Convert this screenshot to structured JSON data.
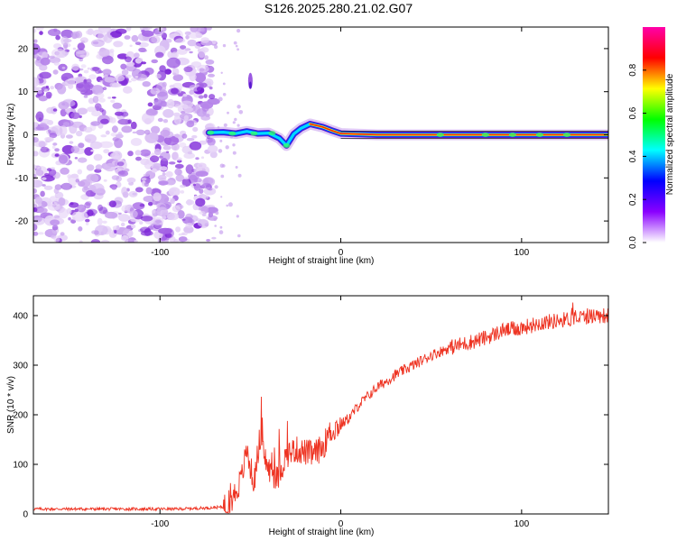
{
  "title": "S126.2025.280.21.02.G07",
  "chart_data": [
    {
      "type": "heatmap",
      "title": "S126.2025.280.21.02.G07",
      "xlabel": "Height of straight line (km)",
      "ylabel": "Frequency (Hz)",
      "xlim": [
        -170,
        148
      ],
      "ylim": [
        -25,
        25
      ],
      "xticks": [
        -100,
        0,
        100
      ],
      "yticks": [
        20,
        10,
        0,
        -10,
        -20
      ],
      "colorbar": {
        "label": "Normalized spectral amplitude",
        "range": [
          0,
          1
        ],
        "ticks": [
          0.0,
          0.2,
          0.4,
          0.6,
          0.8
        ],
        "colors": [
          "#ffffff",
          "#8a00ff",
          "#0000ff",
          "#00ffff",
          "#00ff00",
          "#ffff00",
          "#ff0000",
          "#ff00aa"
        ]
      },
      "signal_track": [
        {
          "x": -73,
          "y": 0.5
        },
        {
          "x": -65,
          "y": 0.6
        },
        {
          "x": -58,
          "y": 0.3
        },
        {
          "x": -52,
          "y": 0.8
        },
        {
          "x": -46,
          "y": 0.3
        },
        {
          "x": -40,
          "y": 0.4
        },
        {
          "x": -34,
          "y": -0.8
        },
        {
          "x": -30,
          "y": -2.5
        },
        {
          "x": -26,
          "y": 0.2
        },
        {
          "x": -22,
          "y": 1.5
        },
        {
          "x": -17,
          "y": 2.5
        },
        {
          "x": -10,
          "y": 1.8
        },
        {
          "x": -5,
          "y": 1.0
        },
        {
          "x": 0,
          "y": 0.3
        },
        {
          "x": 20,
          "y": 0.0
        },
        {
          "x": 60,
          "y": 0.0
        },
        {
          "x": 100,
          "y": 0.0
        },
        {
          "x": 148,
          "y": 0.0
        }
      ],
      "noise_region_x": [
        -170,
        -70
      ],
      "annotations": [
        "feature near x=-50, y=10..15"
      ]
    },
    {
      "type": "line",
      "xlabel": "Height of straight line (km)",
      "ylabel": "SNR (10 * v/v)",
      "xlim": [
        -170,
        148
      ],
      "ylim": [
        0,
        440
      ],
      "xticks": [
        -100,
        0,
        100
      ],
      "yticks": [
        0,
        100,
        200,
        300,
        400
      ],
      "series": [
        {
          "name": "SNR",
          "color": "#ee3322",
          "x": [
            -170,
            -150,
            -130,
            -110,
            -90,
            -75,
            -65,
            -60,
            -55,
            -52,
            -48,
            -45,
            -40,
            -35,
            -30,
            -25,
            -20,
            -15,
            -10,
            -5,
            0,
            5,
            10,
            20,
            30,
            40,
            50,
            60,
            70,
            80,
            90,
            100,
            110,
            120,
            130,
            140,
            148
          ],
          "y": [
            10,
            10,
            10,
            10,
            10,
            12,
            14,
            30,
            70,
            130,
            60,
            150,
            90,
            70,
            120,
            130,
            125,
            120,
            135,
            170,
            180,
            195,
            220,
            255,
            280,
            300,
            320,
            335,
            345,
            355,
            370,
            375,
            385,
            390,
            395,
            400,
            400
          ]
        }
      ]
    }
  ]
}
